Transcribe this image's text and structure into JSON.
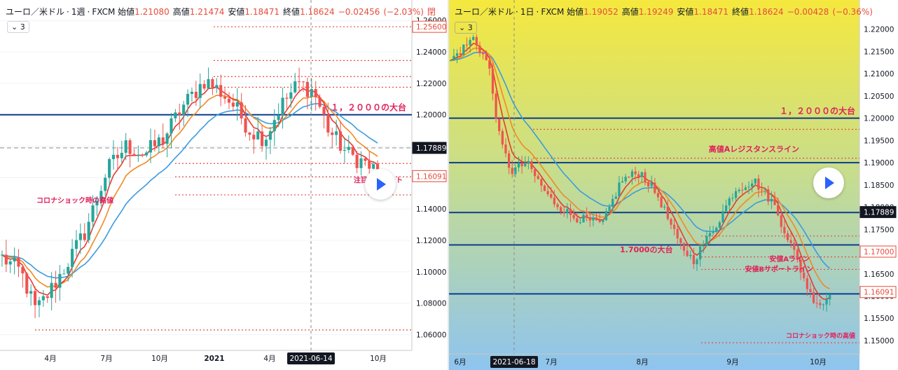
{
  "chart_data": [
    {
      "type": "candlestick",
      "header": {
        "symbol": "ユーロ／米ドル",
        "interval": "1週",
        "source": "FXCM",
        "open_label": "始値",
        "open": "1.21080",
        "high_label": "高値",
        "high": "1.21474",
        "low_label": "安値",
        "low": "1.18471",
        "close_label": "終値",
        "close": "1.18624",
        "change": "−0.02456",
        "change_pct": "(−2.03%)",
        "extra": "閉"
      },
      "indicator_count": "3",
      "ylim": [
        1.05,
        1.265
      ],
      "y_ticks": [
        "1.26000",
        "1.24000",
        "1.22000",
        "1.20000",
        "1.18000",
        "1.16000",
        "1.14000",
        "1.12000",
        "1.10000",
        "1.08000",
        "1.06000"
      ],
      "x_ticks": [
        "4月",
        "7月",
        "10月",
        "2021",
        "4月",
        "2021-06-14",
        "10月"
      ],
      "price_labels": [
        {
          "value": 1.256,
          "text": "1.25600",
          "color": "#e74c3c",
          "fill": false
        },
        {
          "value": 1.17889,
          "text": "1.17889",
          "color": "#131722",
          "fill": true
        },
        {
          "value": 1.16091,
          "text": "1.16091",
          "color": "#e74c3c",
          "fill": false
        }
      ],
      "annotations": [
        {
          "text": "１，２０００の大台",
          "value": 1.2,
          "color": "#e0205a"
        },
        {
          "text": "注目のサポート",
          "value": 1.163,
          "color": "#e0205a"
        },
        {
          "text": "コロナショック時の高値",
          "value": 1.152,
          "color": "#e0205a"
        }
      ],
      "horizontal_lines": [
        {
          "value": 1.2,
          "style": "solid",
          "color": "#0d3b8c"
        },
        {
          "value": 1.17889,
          "style": "dashed",
          "color": "#8a8a8a"
        },
        {
          "value": 1.2345,
          "style": "dotted",
          "color": "#e74c3c"
        },
        {
          "value": 1.2243,
          "style": "dotted",
          "color": "#e74c3c"
        },
        {
          "value": 1.2175,
          "style": "dotted",
          "color": "#e74c3c"
        },
        {
          "value": 1.169,
          "style": "dotted",
          "color": "#e74c3c"
        },
        {
          "value": 1.1605,
          "style": "dotted",
          "color": "#e74c3c"
        },
        {
          "value": 1.149,
          "style": "dotted",
          "color": "#e74c3c"
        },
        {
          "value": 1.063,
          "style": "dotted",
          "color": "#e74c3c"
        },
        {
          "value": 1.256,
          "style": "dotted",
          "color": "#e74c3c"
        }
      ],
      "series_summary": {
        "start": 1.109,
        "low": 1.063,
        "peak_2020": 1.234,
        "peak_2021": 1.226,
        "end": 1.163
      }
    },
    {
      "type": "candlestick",
      "header": {
        "symbol": "ユーロ／米ドル",
        "interval": "1日",
        "source": "FXCM",
        "open_label": "始値",
        "open": "1.19052",
        "high_label": "高値",
        "high": "1.19249",
        "low_label": "安値",
        "low": "1.18471",
        "close_label": "終値",
        "close": "1.18624",
        "change": "−0.00428",
        "change_pct": "(−0.36%)"
      },
      "indicator_count": "3",
      "ylim": [
        1.147,
        1.225
      ],
      "y_ticks": [
        "1.22000",
        "1.21500",
        "1.21000",
        "1.20500",
        "1.20000",
        "1.19500",
        "1.19000",
        "1.18500",
        "1.18000",
        "1.17500",
        "1.17000",
        "1.16500",
        "1.16000",
        "1.15500",
        "1.15000"
      ],
      "x_ticks": [
        "6月",
        "2021-06-18",
        "7月",
        "8月",
        "9月",
        "10月"
      ],
      "price_labels": [
        {
          "value": 1.17889,
          "text": "1.17889",
          "color": "#131722",
          "fill": true
        },
        {
          "value": 1.17,
          "text": "1.17000",
          "color": "#e74c3c",
          "fill": false
        },
        {
          "value": 1.16091,
          "text": "1.16091",
          "color": "#e74c3c",
          "fill": false
        }
      ],
      "annotations": [
        {
          "text": "１，２０００の大台",
          "value": 1.2,
          "color": "#e0205a"
        },
        {
          "text": "高値Aレジスタンスライン",
          "value": 1.1917,
          "color": "#e0205a"
        },
        {
          "text": "1.7000の大台",
          "value": 1.1705,
          "color": "#e0205a"
        },
        {
          "text": "安値Aライン",
          "value": 1.1675,
          "color": "#e0205a"
        },
        {
          "text": "安値Bサポートライン",
          "value": 1.1652,
          "color": "#e0205a"
        },
        {
          "text": "コロナショック時の高値",
          "value": 1.1505,
          "color": "#e0205a"
        }
      ],
      "horizontal_lines": [
        {
          "value": 1.2,
          "style": "solid",
          "color": "#0d3b8c"
        },
        {
          "value": 1.19,
          "style": "solid",
          "color": "#0d3b8c"
        },
        {
          "value": 1.1788,
          "style": "solid",
          "color": "#0d3b8c"
        },
        {
          "value": 1.1715,
          "style": "solid",
          "color": "#0d3b8c"
        },
        {
          "value": 1.1605,
          "style": "solid",
          "color": "#0d3b8c"
        },
        {
          "value": 1.1975,
          "style": "dotted",
          "color": "#e74c3c"
        },
        {
          "value": 1.191,
          "style": "dotted",
          "color": "#e74c3c"
        },
        {
          "value": 1.1735,
          "style": "dotted",
          "color": "#e74c3c"
        },
        {
          "value": 1.1688,
          "style": "dotted",
          "color": "#e74c3c"
        },
        {
          "value": 1.166,
          "style": "dotted",
          "color": "#e74c3c"
        },
        {
          "value": 1.1495,
          "style": "dotted",
          "color": "#e74c3c"
        }
      ],
      "series_summary": {
        "start": 1.215,
        "low": 1.1575,
        "end": 1.1605
      }
    }
  ]
}
